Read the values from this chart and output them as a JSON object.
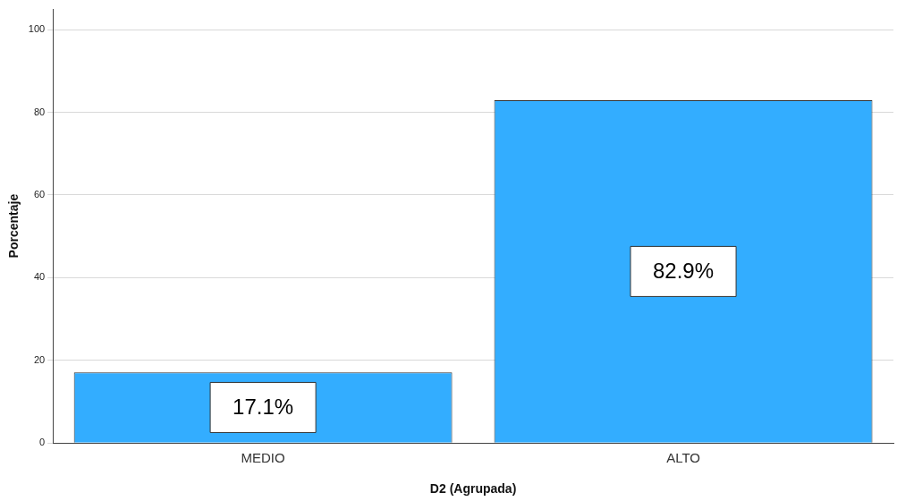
{
  "chart_data": {
    "type": "bar",
    "xlabel": "D2 (Agrupada)",
    "ylabel": "Porcentaje",
    "categories": [
      "MEDIO",
      "ALTO"
    ],
    "values": [
      17.1,
      82.9
    ],
    "value_labels": [
      "17.1%",
      "82.9%"
    ],
    "color": "#33adff",
    "ylim": [
      0,
      105
    ],
    "yticks": [
      0,
      20,
      40,
      60,
      80,
      100
    ],
    "grid": "y",
    "legend": false
  }
}
